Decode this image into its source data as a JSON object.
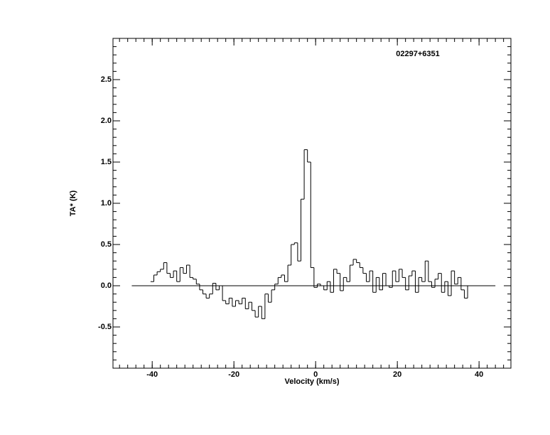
{
  "chart_data": {
    "type": "line",
    "step": true,
    "annotation": "02297+6351",
    "xlabel": "Velocity (km/s)",
    "ylabel": "TA* (K)",
    "xlim": [
      -49.6,
      47.8
    ],
    "ylim": [
      -1,
      3
    ],
    "xticks": [
      -40,
      -20,
      0,
      20,
      40
    ],
    "yticks": [
      -0.5,
      {
        "value": 0,
        "label": "0.0"
      },
      0.5,
      {
        "value": 1,
        "label": "1.0"
      },
      1.5,
      {
        "value": 2,
        "label": "2.0"
      },
      2.5
    ],
    "series": [
      {
        "color": "#000000",
        "x": [
          -40,
          -39.2,
          -38.4,
          -37.6,
          -36.8,
          -36,
          -35.2,
          -34.4,
          -33.6,
          -32.8,
          -32,
          -31.2,
          -30.4,
          -29.6,
          -28.8,
          -28,
          -27.2,
          -26.4,
          -25.6,
          -24.8,
          -24,
          -23.2,
          -22.4,
          -21.6,
          -20.8,
          -20,
          -19.2,
          -18.4,
          -17.6,
          -16.8,
          -16,
          -15.2,
          -14.4,
          -13.6,
          -12.8,
          -12,
          -11.2,
          -10.4,
          -9.6,
          -8.8,
          -8,
          -7.2,
          -6.4,
          -5.6,
          -4.8,
          -4,
          -3.2,
          -2.4,
          -1.6,
          -0.8,
          0,
          0.8,
          1.6,
          2.4,
          3.2,
          4,
          4.8,
          5.6,
          6.4,
          7.2,
          8,
          8.8,
          9.6,
          10.4,
          11.2,
          12,
          12.8,
          13.6,
          14.4,
          15.2,
          16,
          16.8,
          17.6,
          18.4,
          19.2,
          20,
          20.8,
          21.6,
          22.4,
          23.2,
          24,
          24.8,
          25.6,
          26.4,
          27.2,
          28,
          28.8,
          29.6,
          30.4,
          31.2,
          32,
          32.8,
          33.6,
          34.4,
          35.2,
          36,
          36.8,
          37.6
        ],
        "values": [
          0.05,
          0.13,
          0.17,
          0.2,
          0.28,
          0.15,
          0.1,
          0.18,
          0.05,
          0.22,
          0.15,
          0.25,
          0.1,
          0.08,
          0.02,
          -0.05,
          -0.1,
          -0.15,
          -0.1,
          0.03,
          -0.05,
          0.0,
          -0.18,
          -0.22,
          -0.15,
          -0.25,
          -0.18,
          -0.22,
          -0.15,
          -0.28,
          -0.2,
          -0.3,
          -0.38,
          -0.25,
          -0.4,
          -0.1,
          -0.2,
          -0.05,
          0.02,
          0.1,
          0.13,
          0.05,
          0.25,
          0.5,
          0.52,
          0.3,
          1.05,
          1.65,
          1.5,
          0.22,
          -0.02,
          0.02,
          0.0,
          -0.05,
          0.05,
          -0.08,
          0.2,
          0.15,
          -0.06,
          0.1,
          0.05,
          0.25,
          0.32,
          0.28,
          0.22,
          0.15,
          0.05,
          0.18,
          -0.08,
          0.1,
          -0.05,
          0.15,
          0.0,
          -0.02,
          0.18,
          0.05,
          0.2,
          0.1,
          -0.05,
          0.12,
          0.18,
          -0.08,
          0.1,
          0.05,
          0.3,
          0.05,
          -0.02,
          0.08,
          0.15,
          -0.08,
          0.05,
          -0.12,
          0.18,
          0.02,
          0.1,
          -0.05,
          -0.15,
          0.0
        ]
      },
      {
        "color": "#000000",
        "x": [
          -45,
          44
        ],
        "values": [
          0,
          0
        ]
      }
    ]
  }
}
